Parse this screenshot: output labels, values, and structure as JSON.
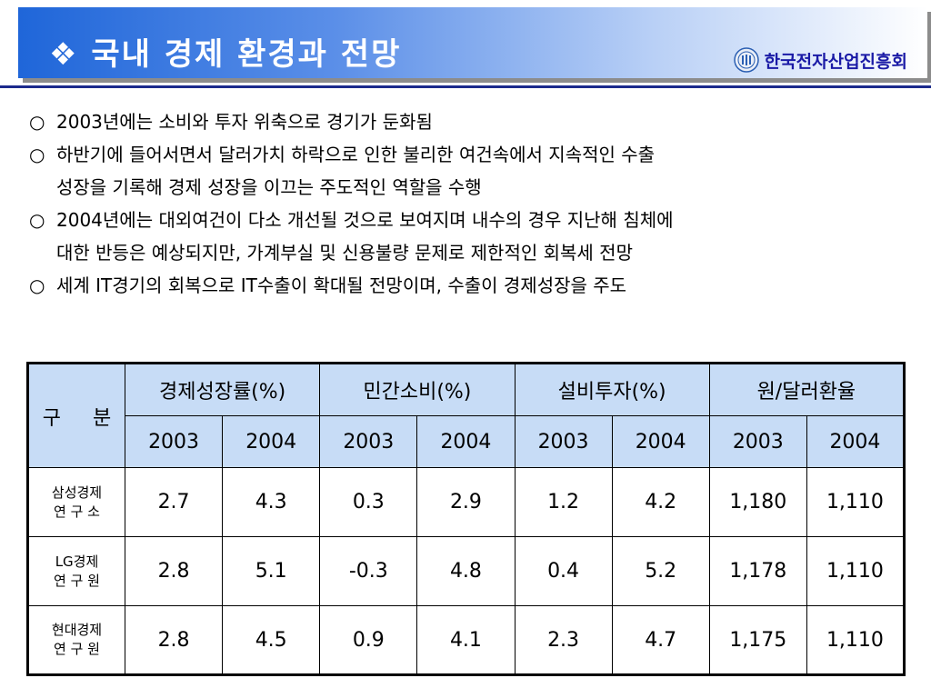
{
  "header": {
    "bullet_icon": "diamond-cluster-icon",
    "title": "국내 경제 환경과 전망",
    "org_name": "한국전자산업진흥회",
    "org_logo": "org-emblem-icon"
  },
  "bullets": [
    {
      "mark": "○",
      "lines": [
        "2003년에는 소비와 투자 위축으로 경기가 둔화됨"
      ]
    },
    {
      "mark": "○",
      "lines": [
        "하반기에 들어서면서 달러가치 하락으로 인한 불리한 여건속에서 지속적인 수출",
        "성장을 기록해  경제 성장을 이끄는 주도적인 역할을 수행"
      ]
    },
    {
      "mark": "○",
      "lines": [
        "2004년에는 대외여건이 다소 개선될 것으로 보여지며 내수의 경우 지난해 침체에",
        "대한 반등은 예상되지만, 가계부실 및 신용불량 문제로 제한적인 회복세 전망"
      ]
    },
    {
      "mark": "○",
      "lines": [
        "세계 IT경기의 회복으로 IT수출이 확대될 전망이며, 수출이 경제성장을 주도"
      ]
    }
  ],
  "table": {
    "corner": "구 분",
    "groups": [
      "경제성장률(%)",
      "민간소비(%)",
      "설비투자(%)",
      "원/달러환율"
    ],
    "years": [
      "2003",
      "2004",
      "2003",
      "2004",
      "2003",
      "2004",
      "2003",
      "2004"
    ],
    "rows": [
      {
        "inst": [
          "삼성경제",
          "연 구 소"
        ],
        "values": [
          "2.7",
          "4.3",
          "0.3",
          "2.9",
          "1.2",
          "4.2",
          "1,180",
          "1,110"
        ]
      },
      {
        "inst": [
          "LG경제",
          "연 구 원"
        ],
        "values": [
          "2.8",
          "5.1",
          "-0.3",
          "4.8",
          "0.4",
          "5.2",
          "1,178",
          "1,110"
        ]
      },
      {
        "inst": [
          "현대경제",
          "연 구 원"
        ],
        "values": [
          "2.8",
          "4.5",
          "0.9",
          "4.1",
          "2.3",
          "4.7",
          "1,175",
          "1,110"
        ]
      }
    ]
  },
  "colors": {
    "title_gradient_start": "#1f66d9",
    "header_cell_bg": "#c7dcf6",
    "divider": "#1b2a8c",
    "org_text": "#1a1aa6"
  }
}
